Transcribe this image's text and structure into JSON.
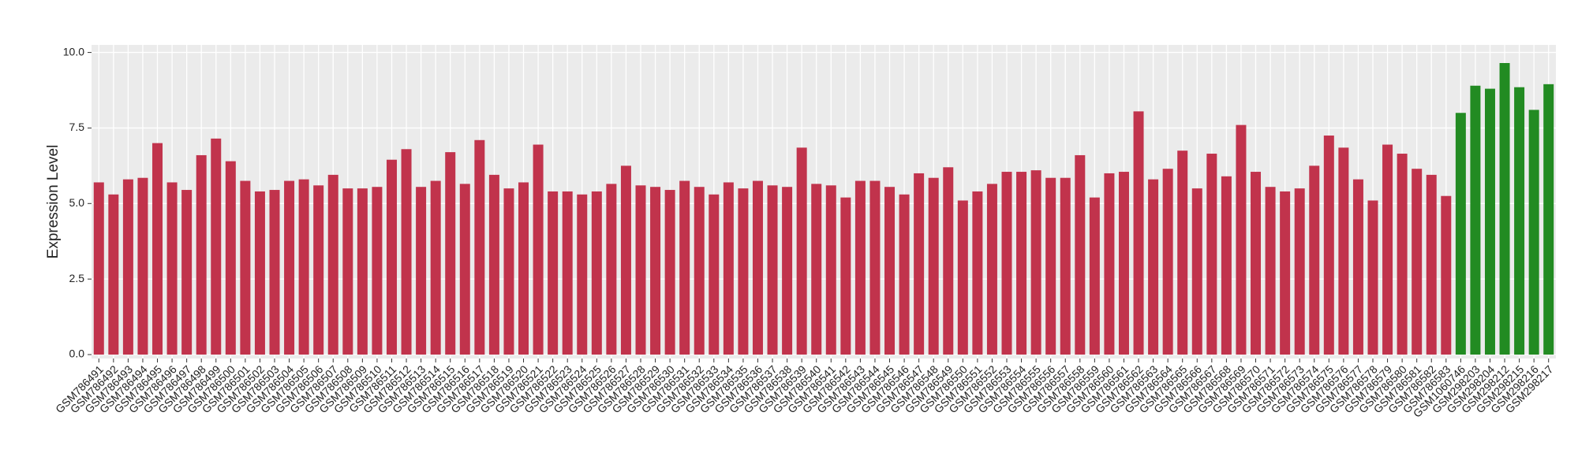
{
  "chart_data": {
    "type": "bar",
    "y_label": "Expression Level",
    "categories": [
      "GSM786491",
      "GSM786492",
      "GSM786493",
      "GSM786494",
      "GSM786495",
      "GSM786496",
      "GSM786497",
      "GSM786498",
      "GSM786499",
      "GSM786500",
      "GSM786501",
      "GSM786502",
      "GSM786503",
      "GSM786504",
      "GSM786505",
      "GSM786506",
      "GSM786507",
      "GSM786508",
      "GSM786509",
      "GSM786510",
      "GSM786511",
      "GSM786512",
      "GSM786513",
      "GSM786514",
      "GSM786515",
      "GSM786516",
      "GSM786517",
      "GSM786518",
      "GSM786519",
      "GSM786520",
      "GSM786521",
      "GSM786522",
      "GSM786523",
      "GSM786524",
      "GSM786525",
      "GSM786526",
      "GSM786527",
      "GSM786528",
      "GSM786529",
      "GSM786530",
      "GSM786531",
      "GSM786532",
      "GSM786533",
      "GSM786534",
      "GSM786535",
      "GSM786536",
      "GSM786537",
      "GSM786538",
      "GSM786539",
      "GSM786540",
      "GSM786541",
      "GSM786542",
      "GSM786543",
      "GSM786544",
      "GSM786545",
      "GSM786546",
      "GSM786547",
      "GSM786548",
      "GSM786549",
      "GSM786550",
      "GSM786551",
      "GSM786552",
      "GSM786553",
      "GSM786554",
      "GSM786555",
      "GSM786556",
      "GSM786557",
      "GSM786558",
      "GSM786559",
      "GSM786560",
      "GSM786561",
      "GSM786562",
      "GSM786563",
      "GSM786564",
      "GSM786565",
      "GSM786566",
      "GSM786567",
      "GSM786568",
      "GSM786569",
      "GSM786570",
      "GSM786571",
      "GSM786572",
      "GSM786573",
      "GSM786574",
      "GSM786575",
      "GSM786576",
      "GSM786577",
      "GSM786578",
      "GSM786579",
      "GSM786580",
      "GSM786581",
      "GSM786582",
      "GSM786583",
      "GSM1060746",
      "GSM298203",
      "GSM298204",
      "GSM298212",
      "GSM298215",
      "GSM298216",
      "GSM298217"
    ],
    "values": [
      5.7,
      5.3,
      5.8,
      5.85,
      7.0,
      5.7,
      5.45,
      6.6,
      7.15,
      6.4,
      5.75,
      5.4,
      5.45,
      5.75,
      5.8,
      5.6,
      5.95,
      5.5,
      5.5,
      5.55,
      6.45,
      6.8,
      5.55,
      5.75,
      6.7,
      5.65,
      7.1,
      5.95,
      5.5,
      5.7,
      6.95,
      5.4,
      5.4,
      5.3,
      5.4,
      5.65,
      6.25,
      5.6,
      5.55,
      5.45,
      5.75,
      5.55,
      5.3,
      5.7,
      5.5,
      5.75,
      5.6,
      5.55,
      6.85,
      5.65,
      5.6,
      5.2,
      5.75,
      5.75,
      5.55,
      5.3,
      6.0,
      5.85,
      6.2,
      5.1,
      5.4,
      5.65,
      6.05,
      6.05,
      6.1,
      5.85,
      5.85,
      6.6,
      5.2,
      6.0,
      6.05,
      8.05,
      5.8,
      6.15,
      6.75,
      5.5,
      6.65,
      5.9,
      7.6,
      6.05,
      5.55,
      5.4,
      5.5,
      6.25,
      7.25,
      6.85,
      5.8,
      5.1,
      6.95,
      6.65,
      6.15,
      5.95,
      5.25,
      8.0,
      8.9,
      8.8,
      9.65,
      8.85,
      8.1,
      8.95
    ],
    "colors": [
      "#c1334c",
      "#c1334c",
      "#c1334c",
      "#c1334c",
      "#c1334c",
      "#c1334c",
      "#c1334c",
      "#c1334c",
      "#c1334c",
      "#c1334c",
      "#c1334c",
      "#c1334c",
      "#c1334c",
      "#c1334c",
      "#c1334c",
      "#c1334c",
      "#c1334c",
      "#c1334c",
      "#c1334c",
      "#c1334c",
      "#c1334c",
      "#c1334c",
      "#c1334c",
      "#c1334c",
      "#c1334c",
      "#c1334c",
      "#c1334c",
      "#c1334c",
      "#c1334c",
      "#c1334c",
      "#c1334c",
      "#c1334c",
      "#c1334c",
      "#c1334c",
      "#c1334c",
      "#c1334c",
      "#c1334c",
      "#c1334c",
      "#c1334c",
      "#c1334c",
      "#c1334c",
      "#c1334c",
      "#c1334c",
      "#c1334c",
      "#c1334c",
      "#c1334c",
      "#c1334c",
      "#c1334c",
      "#c1334c",
      "#c1334c",
      "#c1334c",
      "#c1334c",
      "#c1334c",
      "#c1334c",
      "#c1334c",
      "#c1334c",
      "#c1334c",
      "#c1334c",
      "#c1334c",
      "#c1334c",
      "#c1334c",
      "#c1334c",
      "#c1334c",
      "#c1334c",
      "#c1334c",
      "#c1334c",
      "#c1334c",
      "#c1334c",
      "#c1334c",
      "#c1334c",
      "#c1334c",
      "#c1334c",
      "#c1334c",
      "#c1334c",
      "#c1334c",
      "#c1334c",
      "#c1334c",
      "#c1334c",
      "#c1334c",
      "#c1334c",
      "#c1334c",
      "#c1334c",
      "#c1334c",
      "#c1334c",
      "#c1334c",
      "#c1334c",
      "#c1334c",
      "#c1334c",
      "#c1334c",
      "#c1334c",
      "#c1334c",
      "#c1334c",
      "#c1334c",
      "#228b22",
      "#228b22",
      "#228b22",
      "#228b22",
      "#228b22",
      "#228b22",
      "#228b22"
    ],
    "ylim": [
      -0.13,
      10.25
    ],
    "yticks": [
      {
        "value": 0,
        "label": "0.0"
      },
      {
        "value": 2.5,
        "label": "2.5"
      },
      {
        "value": 5,
        "label": "5.0"
      },
      {
        "value": 7.5,
        "label": "7.5"
      },
      {
        "value": 10,
        "label": "10.0"
      }
    ],
    "grid": true
  }
}
